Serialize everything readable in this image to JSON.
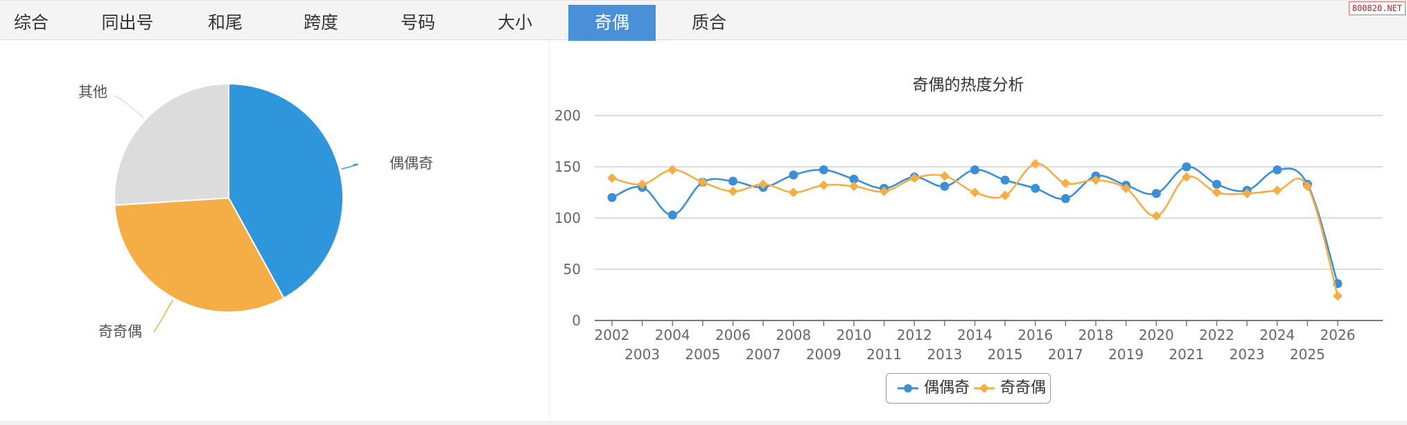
{
  "tabs": [
    {
      "label": "综合",
      "active": false
    },
    {
      "label": "同出号",
      "active": false
    },
    {
      "label": "和尾",
      "active": false
    },
    {
      "label": "跨度",
      "active": false
    },
    {
      "label": "号码",
      "active": false
    },
    {
      "label": "大小",
      "active": false
    },
    {
      "label": "奇偶",
      "active": true
    },
    {
      "label": "质合",
      "active": false
    }
  ],
  "watermark": "800820.NET",
  "colors": {
    "series1": "#3b8fd6",
    "series2": "#f5ae45",
    "other": "#dcdcdc",
    "active_tab": "#4a90d9"
  },
  "chart_data": [
    {
      "type": "pie",
      "title": "",
      "slices": [
        {
          "label": "偶偶奇",
          "value": 42,
          "color": "#2f96dc"
        },
        {
          "label": "奇奇偶",
          "value": 32,
          "color": "#f5ae45"
        },
        {
          "label": "其他",
          "value": 26,
          "color": "#dcdcdc"
        }
      ]
    },
    {
      "type": "line",
      "title": "奇偶的热度分析",
      "xlabel": "",
      "ylabel": "",
      "ylim": [
        0,
        200
      ],
      "yticks": [
        0,
        50,
        100,
        150,
        200
      ],
      "grid": true,
      "legend": "bottom-center",
      "categories": [
        "2002",
        "2003",
        "2004",
        "2005",
        "2006",
        "2007",
        "2008",
        "2009",
        "2010",
        "2011",
        "2012",
        "2013",
        "2014",
        "2015",
        "2016",
        "2017",
        "2018",
        "2019",
        "2020",
        "2021",
        "2022",
        "2023",
        "2024",
        "2025",
        "2026"
      ],
      "series": [
        {
          "name": "偶偶奇",
          "marker": "circle",
          "color": "#3b8fd6",
          "values": [
            120,
            130,
            103,
            135,
            136,
            130,
            142,
            147,
            138,
            129,
            140,
            131,
            147,
            137,
            129,
            119,
            141,
            132,
            124,
            150,
            133,
            127,
            147,
            133,
            36
          ]
        },
        {
          "name": "奇奇偶",
          "marker": "diamond",
          "color": "#f5ae45",
          "values": [
            139,
            133,
            147,
            135,
            126,
            133,
            125,
            132,
            131,
            126,
            139,
            141,
            125,
            122,
            153,
            134,
            137,
            129,
            102,
            140,
            125,
            124,
            127,
            131,
            24
          ]
        }
      ]
    }
  ]
}
